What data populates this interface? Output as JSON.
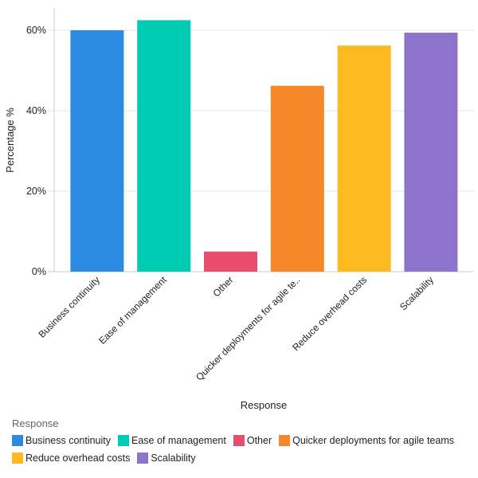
{
  "chart_data": {
    "type": "bar",
    "categories": [
      "Business continuity",
      "Ease of management",
      "Other",
      "Quicker deployments for agile teams",
      "Reduce overhead costs",
      "Scalability"
    ],
    "tick_labels": [
      "Business continuity",
      "Ease of management",
      "Other",
      "Quicker deployments for agile te..",
      "Reduce overhead costs",
      "Scalability"
    ],
    "values": [
      60.0,
      62.5,
      5.0,
      46.2,
      56.2,
      59.4
    ],
    "colors": [
      "#2A8BE0",
      "#00CCB3",
      "#E84D6F",
      "#F7882A",
      "#FCBA20",
      "#8E73CC"
    ],
    "xlabel": "Response",
    "ylabel": "Percentage %",
    "ylim": [
      0,
      65
    ],
    "yticks": [
      0,
      20,
      40,
      60
    ],
    "ytick_labels": [
      "0%",
      "20%",
      "40%",
      "60%"
    ],
    "grid": true,
    "legend": {
      "title": "Response",
      "placement": "bottom-left",
      "items": [
        "Business continuity",
        "Ease of management",
        "Other",
        "Quicker deployments for agile teams",
        "Reduce overhead costs",
        "Scalability"
      ]
    }
  }
}
